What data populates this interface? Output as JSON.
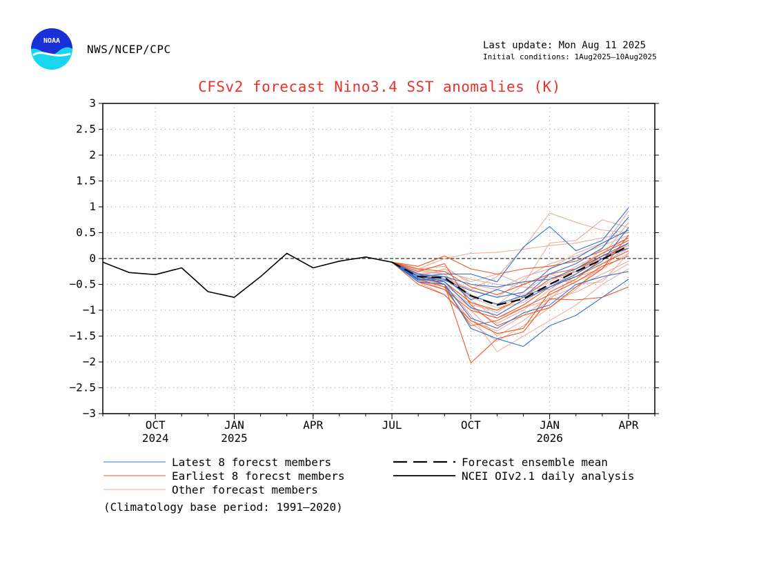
{
  "header": {
    "agency": "NWS/NCEP/CPC",
    "last_update": "Last update: Mon Aug 11 2025",
    "initial_conditions": "Initial conditions: 1Aug2025–10Aug2025",
    "logo_text": "NOAA"
  },
  "footer": {
    "climatology": "(Climatology base period: 1991–2020)"
  },
  "colors": {
    "title": "#e8322a",
    "latest": "#2f6fd0",
    "earliest": "#f0531d",
    "other": "#e8a596",
    "analysis": "#000000",
    "mean": "#000000"
  },
  "chart_data": {
    "type": "line",
    "title": "CFSv2 forecast Nino3.4 SST anomalies (K)",
    "ylim": [
      -3,
      3
    ],
    "yticks": [
      "3",
      "2.5",
      "2",
      "1.5",
      "1",
      "0.5",
      "0",
      "−0.5",
      "−1",
      "−1.5",
      "−2",
      "−2.5",
      "−3"
    ],
    "ytick_values": [
      3,
      2.5,
      2,
      1.5,
      1,
      0.5,
      0,
      -0.5,
      -1,
      -1.5,
      -2,
      -2.5,
      -3
    ],
    "xlim": [
      0,
      21
    ],
    "x_unit": "months since Aug 2024",
    "xticks": [
      {
        "x": 2,
        "label": "OCT",
        "year": "2024"
      },
      {
        "x": 5,
        "label": "JAN",
        "year": "2025"
      },
      {
        "x": 8,
        "label": "APR",
        "year": ""
      },
      {
        "x": 11,
        "label": "JUL",
        "year": ""
      },
      {
        "x": 14,
        "label": "OCT",
        "year": ""
      },
      {
        "x": 17,
        "label": "JAN",
        "year": "2026"
      },
      {
        "x": 20,
        "label": "APR",
        "year": ""
      }
    ],
    "grid": true,
    "zero_line": true,
    "legend": [
      {
        "label": "Latest 8 forecst members",
        "style": "latest"
      },
      {
        "label": "Earliest 8 forecst members",
        "style": "earliest"
      },
      {
        "label": "Other forecast members",
        "style": "other"
      },
      {
        "label": "Forecast ensemble mean",
        "style": "mean"
      },
      {
        "label": "NCEI OIv2.1 daily analysis",
        "style": "analysis"
      }
    ],
    "analysis": {
      "name": "NCEI OIv2.1 daily analysis",
      "x": [
        0,
        1,
        2,
        3,
        4,
        5,
        6,
        7,
        8,
        9,
        10,
        11
      ],
      "y": [
        -0.07,
        -0.27,
        -0.31,
        -0.18,
        -0.64,
        -0.75,
        -0.35,
        0.1,
        -0.18,
        -0.05,
        0.03,
        -0.07
      ]
    },
    "ensemble_mean": {
      "name": "Forecast ensemble mean",
      "x": [
        11,
        12,
        13,
        14,
        15,
        16,
        17,
        18,
        19,
        20
      ],
      "y": [
        -0.07,
        -0.35,
        -0.37,
        -0.72,
        -0.9,
        -0.78,
        -0.5,
        -0.25,
        -0.02,
        0.25
      ]
    },
    "members_x": [
      11,
      12,
      13,
      14,
      15,
      16,
      17,
      18,
      19,
      20
    ],
    "latest_members": [
      [
        -0.07,
        -0.45,
        -0.5,
        -1.35,
        -1.55,
        -1.7,
        -1.3,
        -1.1,
        -0.75,
        -0.4
      ],
      [
        -0.07,
        -0.35,
        -0.3,
        -0.3,
        -0.45,
        0.22,
        0.62,
        0.15,
        0.35,
        0.98
      ],
      [
        -0.07,
        -0.3,
        -0.35,
        -0.8,
        -0.6,
        -0.75,
        -0.3,
        -0.1,
        0.2,
        0.8
      ],
      [
        -0.07,
        -0.4,
        -0.45,
        -0.95,
        -1.1,
        -0.8,
        -0.55,
        -0.35,
        -0.05,
        0.6
      ],
      [
        -0.07,
        -0.38,
        -0.42,
        -0.62,
        -0.75,
        -0.65,
        -0.2,
        0.0,
        0.3,
        0.55
      ],
      [
        -0.07,
        -0.3,
        -0.5,
        -1.15,
        -1.35,
        -1.05,
        -0.9,
        -0.5,
        -0.35,
        -0.25
      ],
      [
        -0.07,
        -0.42,
        -0.35,
        -0.5,
        -0.55,
        -0.45,
        -0.4,
        -0.2,
        0.05,
        0.3
      ],
      [
        -0.07,
        -0.33,
        -0.4,
        -0.72,
        -0.88,
        -0.72,
        -0.55,
        -0.3,
        0.0,
        0.2
      ]
    ],
    "earliest_members": [
      [
        -0.07,
        -0.35,
        -0.5,
        -2.02,
        -1.55,
        -1.42,
        -0.78,
        -0.8,
        -0.75,
        -0.55
      ],
      [
        -0.07,
        -0.25,
        -0.1,
        -0.9,
        -1.3,
        -1.1,
        -0.95,
        -0.55,
        -0.2,
        0.45
      ],
      [
        -0.07,
        -0.5,
        -0.7,
        -1.2,
        -1.45,
        -1.35,
        -0.65,
        -0.4,
        0.0,
        0.3
      ],
      [
        -0.07,
        -0.15,
        0.05,
        -0.2,
        -0.3,
        -0.2,
        -0.15,
        -0.05,
        0.15,
        0.4
      ],
      [
        -0.07,
        -0.3,
        -0.45,
        -0.85,
        -1.0,
        -0.75,
        -0.4,
        -0.25,
        0.05,
        0.2
      ],
      [
        -0.07,
        -0.45,
        -0.6,
        -1.0,
        -1.15,
        -0.9,
        -0.55,
        -0.35,
        -0.1,
        0.15
      ],
      [
        -0.07,
        -0.2,
        -0.25,
        -0.55,
        -0.7,
        -0.5,
        -0.3,
        -0.2,
        0.1,
        0.35
      ],
      [
        -0.07,
        -0.4,
        -0.55,
        -1.3,
        -1.2,
        -0.95,
        -0.7,
        -0.45,
        -0.15,
        0.05
      ]
    ],
    "other_members": [
      [
        -0.07,
        -0.2,
        0.0,
        0.1,
        0.12,
        0.18,
        0.25,
        0.3,
        0.4,
        0.5
      ],
      [
        -0.07,
        -0.3,
        -0.4,
        -0.6,
        -0.35,
        0.2,
        0.88,
        0.7,
        0.55,
        0.5
      ],
      [
        -0.07,
        -0.35,
        -0.2,
        -0.45,
        -0.3,
        -0.5,
        0.3,
        0.35,
        0.75,
        0.6
      ],
      [
        -0.07,
        -0.4,
        -0.6,
        -1.0,
        -1.5,
        -1.2,
        -0.8,
        -0.3,
        0.2,
        0.92
      ],
      [
        -0.07,
        -0.45,
        -0.7,
        -1.25,
        -1.6,
        -1.3,
        -0.95,
        -0.6,
        -0.1,
        0.2
      ],
      [
        -0.07,
        -0.3,
        -0.5,
        -1.1,
        -1.8,
        -1.5,
        -1.2,
        -0.9,
        -0.5,
        -0.2
      ],
      [
        -0.07,
        -0.25,
        -0.3,
        -0.7,
        -0.9,
        -0.5,
        -0.35,
        -0.5,
        -0.45,
        0.1
      ],
      [
        -0.07,
        -0.38,
        -0.45,
        -0.85,
        -1.05,
        -0.7,
        -0.45,
        -0.15,
        0.1,
        0.4
      ],
      [
        -0.07,
        -0.33,
        -0.55,
        -0.95,
        -1.25,
        -1.0,
        -0.6,
        -0.2,
        0.0,
        0.25
      ],
      [
        -0.07,
        -0.2,
        -0.15,
        -0.5,
        -0.6,
        -0.35,
        -0.2,
        0.1,
        0.3,
        0.55
      ],
      [
        -0.07,
        -0.42,
        -0.6,
        -1.2,
        -1.4,
        -1.1,
        -0.75,
        -0.55,
        -0.3,
        -0.05
      ],
      [
        -0.07,
        -0.28,
        -0.4,
        -0.75,
        -0.95,
        -0.85,
        -0.5,
        -0.35,
        -0.2,
        0.1
      ],
      [
        -0.07,
        -0.35,
        -0.35,
        -0.6,
        -0.75,
        -0.4,
        -0.1,
        0.05,
        0.25,
        0.45
      ],
      [
        -0.07,
        -0.22,
        -0.3,
        -0.8,
        -1.15,
        -0.95,
        -0.8,
        -0.65,
        -0.4,
        -0.1
      ],
      [
        -0.07,
        -0.4,
        -0.5,
        -0.9,
        -1.0,
        -0.65,
        -0.3,
        -0.45,
        -0.2,
        0.3
      ],
      [
        -0.07,
        -0.3,
        -0.25,
        -0.4,
        -0.5,
        -0.55,
        -0.6,
        -0.3,
        0.05,
        0.7
      ]
    ]
  }
}
